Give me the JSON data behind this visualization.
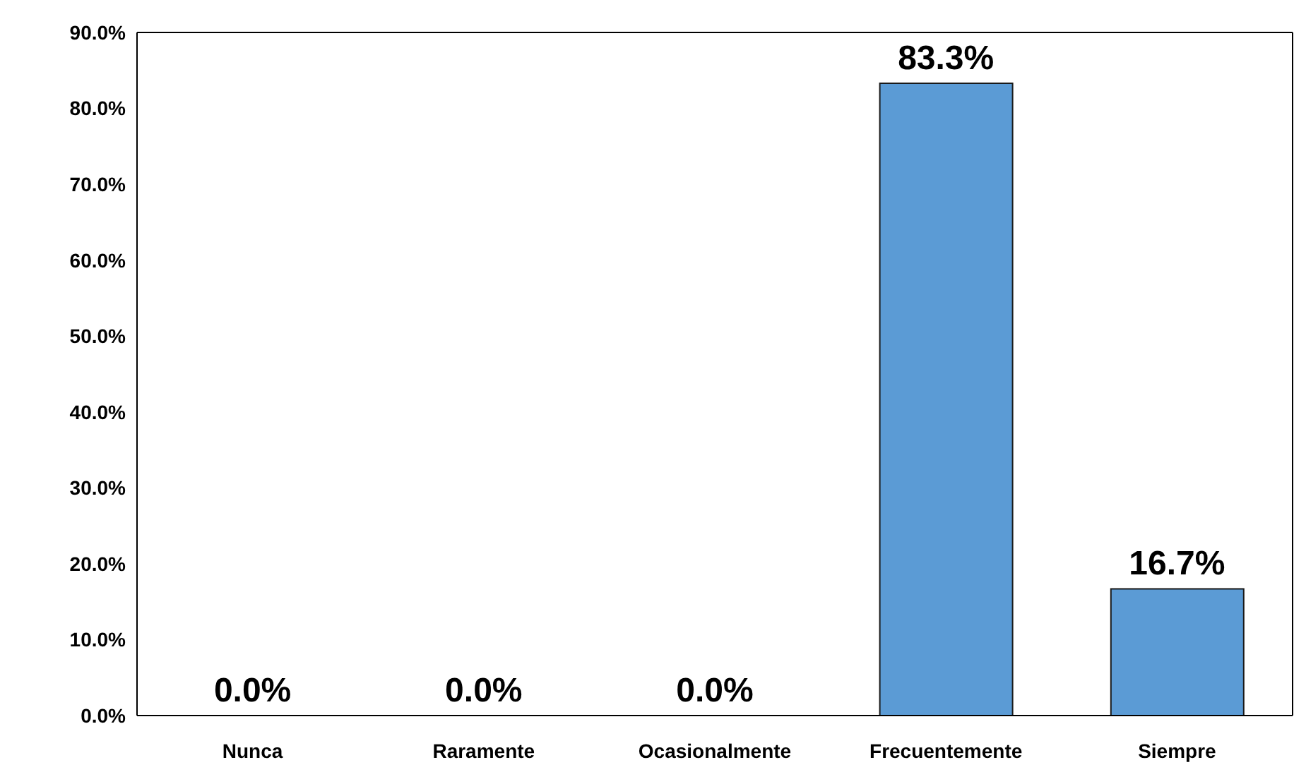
{
  "chart_data": {
    "type": "bar",
    "categories": [
      "Nunca",
      "Raramente",
      "Ocasionalmente",
      "Frecuentemente",
      "Siempre"
    ],
    "values": [
      0,
      0,
      0,
      83.3,
      16.7
    ],
    "value_labels": [
      "0.0%",
      "0.0%",
      "0.0%",
      "83.3%",
      "16.7%"
    ],
    "color": "#5b9bd5",
    "ylim": [
      0,
      90
    ],
    "yticks": [
      {
        "value": 0,
        "label": "0.0%"
      },
      {
        "value": 10,
        "label": "10.0%"
      },
      {
        "value": 20,
        "label": "20.0%"
      },
      {
        "value": 30,
        "label": "30.0%"
      },
      {
        "value": 40,
        "label": "40.0%"
      },
      {
        "value": 50,
        "label": "50.0%"
      },
      {
        "value": 60,
        "label": "60.0%"
      },
      {
        "value": 70,
        "label": "70.0%"
      },
      {
        "value": 80,
        "label": "80.0%"
      },
      {
        "value": 90,
        "label": "90.0%"
      }
    ],
    "grid": false,
    "legend": false
  }
}
